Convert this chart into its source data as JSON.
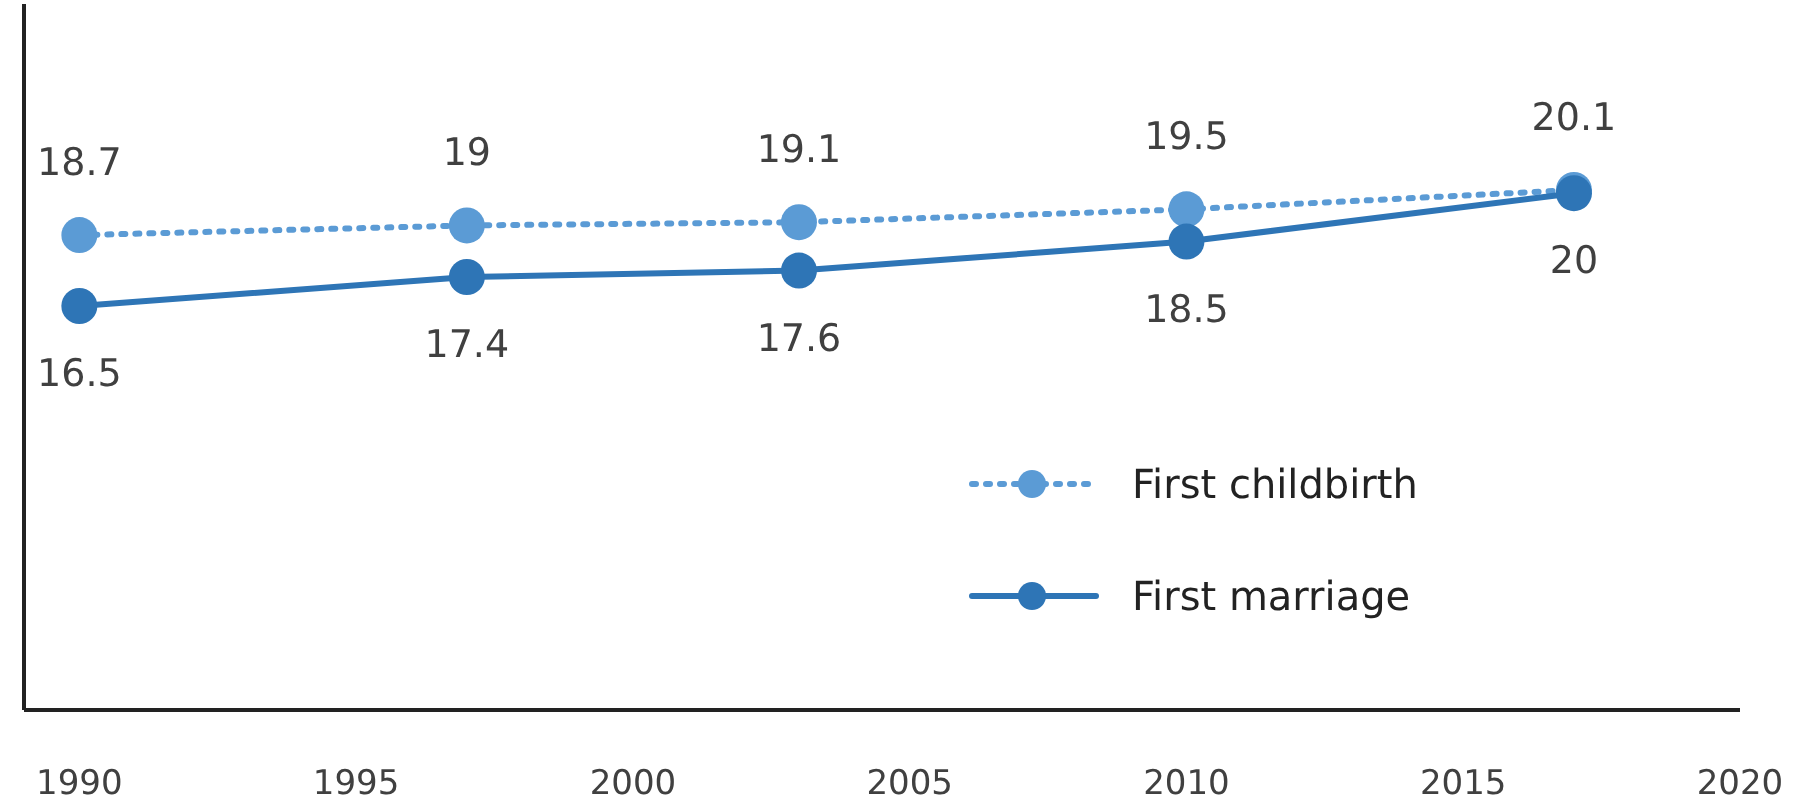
{
  "chart_data": {
    "type": "line",
    "x": [
      1990,
      1997,
      2003,
      2010,
      2017
    ],
    "series": [
      {
        "name": "First childbirth",
        "color": "#5b9bd5",
        "values": [
          18.7,
          19,
          19.1,
          19.5,
          20.1
        ],
        "line_style": "dotted"
      },
      {
        "name": "First marriage",
        "color": "#2e75b6",
        "values": [
          16.5,
          17.4,
          17.6,
          18.5,
          20
        ],
        "line_style": "solid"
      }
    ],
    "xlim": [
      1989,
      2020
    ],
    "xticks": [
      1990,
      1995,
      2000,
      2005,
      2010,
      2015,
      2020
    ],
    "tick_labels": "x",
    "data_labels": true,
    "marker": "circle",
    "legend": "right"
  }
}
